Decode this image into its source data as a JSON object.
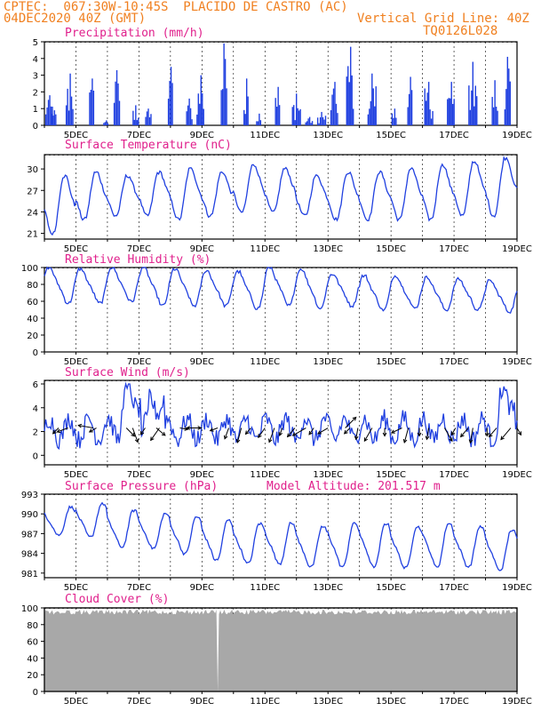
{
  "header": {
    "line1_left": "CPTEC:  067:30W-10:45S  PLACIDO DE CASTRO (AC)",
    "line2_left": "04DEC2020 40Z (GMT)",
    "line2_right": "Vertical Grid Line: 40Z",
    "line3_right": "TQ0126L028"
  },
  "colors": {
    "header": "#f08020",
    "title": "#e0208c",
    "line": "#2040e0",
    "bar": "#2040e0",
    "cloud": "#a8a8a8"
  },
  "x_ticks": [
    "5DEC",
    "7DEC",
    "9DEC",
    "11DEC",
    "13DEC",
    "15DEC",
    "17DEC",
    "19DEC"
  ],
  "chart_data": [
    {
      "type": "bar",
      "title": "Precipitation (mm/h)",
      "ylim": [
        0,
        5
      ],
      "yticks": [
        "0",
        "1",
        "2",
        "3",
        "4",
        "5"
      ],
      "x_days": [
        4.0,
        19.0
      ],
      "values_note": "hourly bars from 04DEC to 19DEC",
      "events": [
        {
          "day": 4.15,
          "peak": 1.8
        },
        {
          "day": 4.3,
          "peak": 0.9
        },
        {
          "day": 4.8,
          "peak": 3.1
        },
        {
          "day": 5.5,
          "peak": 2.8
        },
        {
          "day": 5.95,
          "peak": 0.3
        },
        {
          "day": 6.3,
          "peak": 3.3
        },
        {
          "day": 6.9,
          "peak": 1.2
        },
        {
          "day": 7.3,
          "peak": 1.0
        },
        {
          "day": 8.0,
          "peak": 3.5
        },
        {
          "day": 8.6,
          "peak": 1.6
        },
        {
          "day": 8.95,
          "peak": 3.0
        },
        {
          "day": 9.7,
          "peak": 4.9
        },
        {
          "day": 10.4,
          "peak": 2.8
        },
        {
          "day": 10.8,
          "peak": 0.7
        },
        {
          "day": 11.4,
          "peak": 2.3
        },
        {
          "day": 12.0,
          "peak": 1.9
        },
        {
          "day": 12.4,
          "peak": 0.5
        },
        {
          "day": 12.8,
          "peak": 0.8
        },
        {
          "day": 13.2,
          "peak": 2.6
        },
        {
          "day": 13.7,
          "peak": 4.7
        },
        {
          "day": 14.4,
          "peak": 3.1
        },
        {
          "day": 15.1,
          "peak": 1.0
        },
        {
          "day": 15.6,
          "peak": 2.9
        },
        {
          "day": 16.2,
          "peak": 2.6
        },
        {
          "day": 16.9,
          "peak": 2.6
        },
        {
          "day": 17.6,
          "peak": 3.8
        },
        {
          "day": 18.3,
          "peak": 2.7
        },
        {
          "day": 18.7,
          "peak": 4.1
        }
      ]
    },
    {
      "type": "line",
      "title": "Surface Temperature (nC)",
      "ylim": [
        20.2,
        32
      ],
      "yticks": [
        "21",
        "24",
        "27",
        "30"
      ],
      "ytick_values": [
        21,
        24,
        27,
        30
      ],
      "daily_min": [
        21.0,
        23.0,
        23.5,
        23.5,
        23.0,
        23.5,
        24.0,
        24.0,
        23.5,
        23.0,
        23.0,
        23.0,
        23.0,
        23.5,
        23.5,
        24.0
      ],
      "daily_max": [
        29.0,
        29.5,
        29.0,
        29.5,
        30.0,
        29.5,
        30.5,
        30.0,
        29.0,
        29.5,
        29.5,
        30.0,
        30.5,
        31.0,
        31.5,
        32.0
      ]
    },
    {
      "type": "line",
      "title": "Relative Humidity (%)",
      "ylim": [
        0,
        100
      ],
      "yticks": [
        "0",
        "20",
        "40",
        "60",
        "80",
        "100"
      ],
      "ytick_values": [
        0,
        20,
        40,
        60,
        80,
        100
      ],
      "daily_min": [
        58,
        58,
        60,
        55,
        55,
        55,
        52,
        55,
        52,
        55,
        50,
        52,
        50,
        50,
        48,
        45
      ],
      "daily_max": [
        100,
        98,
        100,
        100,
        98,
        96,
        95,
        100,
        98,
        92,
        90,
        90,
        88,
        86,
        84,
        80
      ]
    },
    {
      "type": "line",
      "title": "Surface Wind (m/s)",
      "ylim": [
        -0.8,
        6.3
      ],
      "yticks": [
        "0",
        "2",
        "4",
        "6"
      ],
      "ytick_values": [
        0,
        2,
        4,
        6
      ],
      "arrow_days": [
        4.45,
        4.75,
        5.55,
        5.65,
        6.6,
        6.8,
        7.2,
        7.55,
        7.65,
        8.3,
        8.6,
        9.0,
        9.5,
        9.85,
        10.25,
        10.55,
        11.0,
        11.3,
        11.55,
        11.95,
        12.3,
        12.55,
        13.0,
        13.55,
        13.7,
        13.95,
        14.4,
        14.8,
        15.35,
        15.55,
        15.9,
        16.2,
        16.7,
        17.05,
        17.45,
        17.6,
        18.05,
        18.35,
        18.8,
        19.0
      ],
      "arrow_angles_deg": [
        225,
        200,
        170,
        210,
        315,
        290,
        235,
        320,
        235,
        350,
        0,
        180,
        200,
        250,
        255,
        230,
        235,
        250,
        250,
        230,
        210,
        235,
        210,
        45,
        225,
        260,
        240,
        270,
        205,
        255,
        270,
        260,
        300,
        240,
        230,
        260,
        270,
        230,
        230,
        300
      ]
    },
    {
      "type": "line",
      "title": "Surface Pressure (hPa)",
      "annotation": "Model Altitude: 201.517 m",
      "ylim": [
        980.3,
        993
      ],
      "yticks": [
        "981",
        "984",
        "987",
        "990",
        "993"
      ],
      "ytick_values": [
        981,
        984,
        987,
        990,
        993
      ],
      "daily_min": [
        986.8,
        986.5,
        985.0,
        984.8,
        984.0,
        983.0,
        982.5,
        982.5,
        982.0,
        982.0,
        982.0,
        981.8,
        982.0,
        982.0,
        981.5,
        981.0
      ],
      "daily_max": [
        991.0,
        991.5,
        990.5,
        990.0,
        989.5,
        989.0,
        988.5,
        988.5,
        988.0,
        988.5,
        988.5,
        988.0,
        988.5,
        988.0,
        987.5,
        987.5
      ]
    },
    {
      "type": "area",
      "title": "Cloud Cover (%)",
      "ylim": [
        0,
        100
      ],
      "yticks": [
        "0",
        "20",
        "40",
        "60",
        "80",
        "100"
      ],
      "ytick_values": [
        0,
        20,
        40,
        60,
        80,
        100
      ],
      "typical_value": 98,
      "gap_day": 9.5
    }
  ]
}
